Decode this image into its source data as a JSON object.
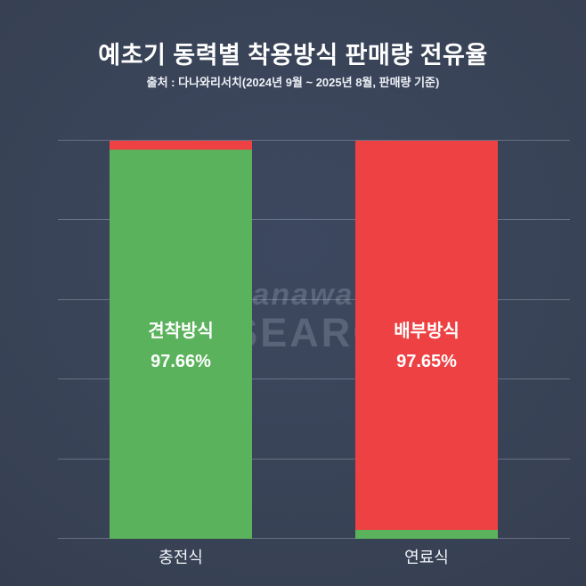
{
  "page": {
    "title": "예초기 동력별 착용방식 판매량 전유율",
    "subtitle": "출처 : 다나와리서치(2024년 9월 ~ 2025년 8월, 판매량 기준)"
  },
  "watermark": {
    "line1": "danawa",
    "line2": "RESEARCH"
  },
  "chart_data": {
    "type": "bar",
    "stacked": true,
    "value_unit": "%",
    "ylim": [
      0,
      100
    ],
    "gridline_count": 6,
    "legend": "none",
    "categories": [
      "충전식",
      "연료식"
    ],
    "series": [
      {
        "name": "견착방식",
        "color": "#5bb25c",
        "values": [
          97.66,
          2.35
        ]
      },
      {
        "name": "배부방식",
        "color": "#ee4143",
        "values": [
          2.34,
          97.65
        ]
      }
    ],
    "bar_labels": [
      {
        "name": "견착방식",
        "value": "97.66%"
      },
      {
        "name": "배부방식",
        "value": "97.65%"
      }
    ]
  },
  "colors": {
    "background_center": "#3d4860",
    "background_edge": "#2b3444",
    "gridline": "rgba(198,208,224,0.32)",
    "text": "#ffffff",
    "watermark": "rgba(212,221,235,0.20)",
    "green": "#5bb25c",
    "red": "#ee4143"
  }
}
